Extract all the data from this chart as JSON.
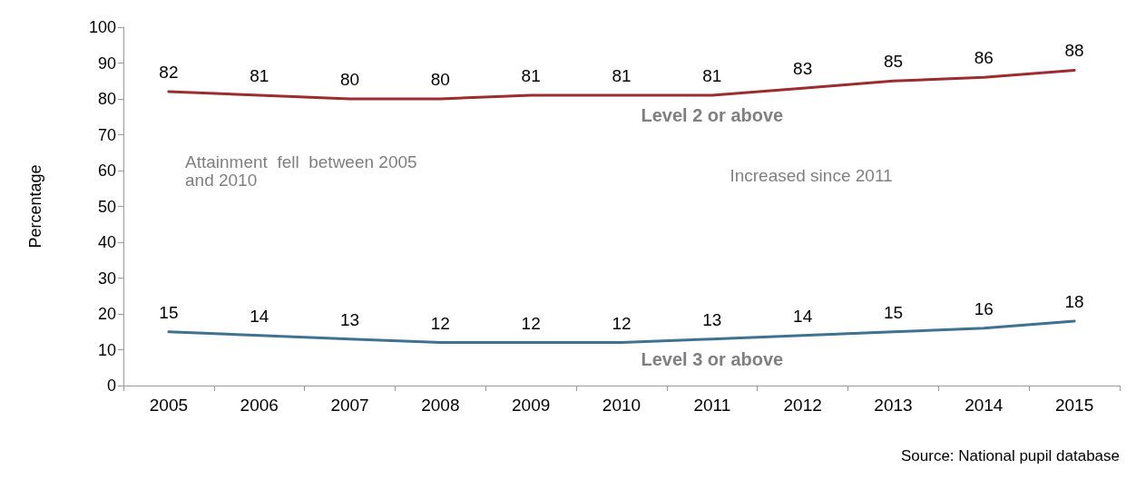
{
  "chart_data": {
    "type": "line",
    "ylabel": "Percentage",
    "categories": [
      "2005",
      "2006",
      "2007",
      "2008",
      "2009",
      "2010",
      "2011",
      "2012",
      "2013",
      "2014",
      "2015"
    ],
    "series": [
      {
        "name": "Level 2 or above",
        "color": "#9b2d30",
        "values": [
          82,
          81,
          80,
          80,
          81,
          81,
          81,
          83,
          85,
          86,
          88
        ]
      },
      {
        "name": "Level 3 or above",
        "color": "#3f7191",
        "values": [
          15,
          14,
          13,
          12,
          12,
          12,
          13,
          14,
          15,
          16,
          18
        ]
      }
    ],
    "ylim": [
      0,
      100
    ],
    "yticks": [
      0,
      10,
      20,
      30,
      40,
      50,
      60,
      70,
      80,
      90,
      100
    ],
    "data_labels": true,
    "grid": false,
    "legend": false,
    "marker": "none",
    "line_style": "solid",
    "annotations": [
      "Attainment  fell  between 2005\nand 2010",
      "Increased since 2011",
      "Source: National pupil database"
    ]
  }
}
